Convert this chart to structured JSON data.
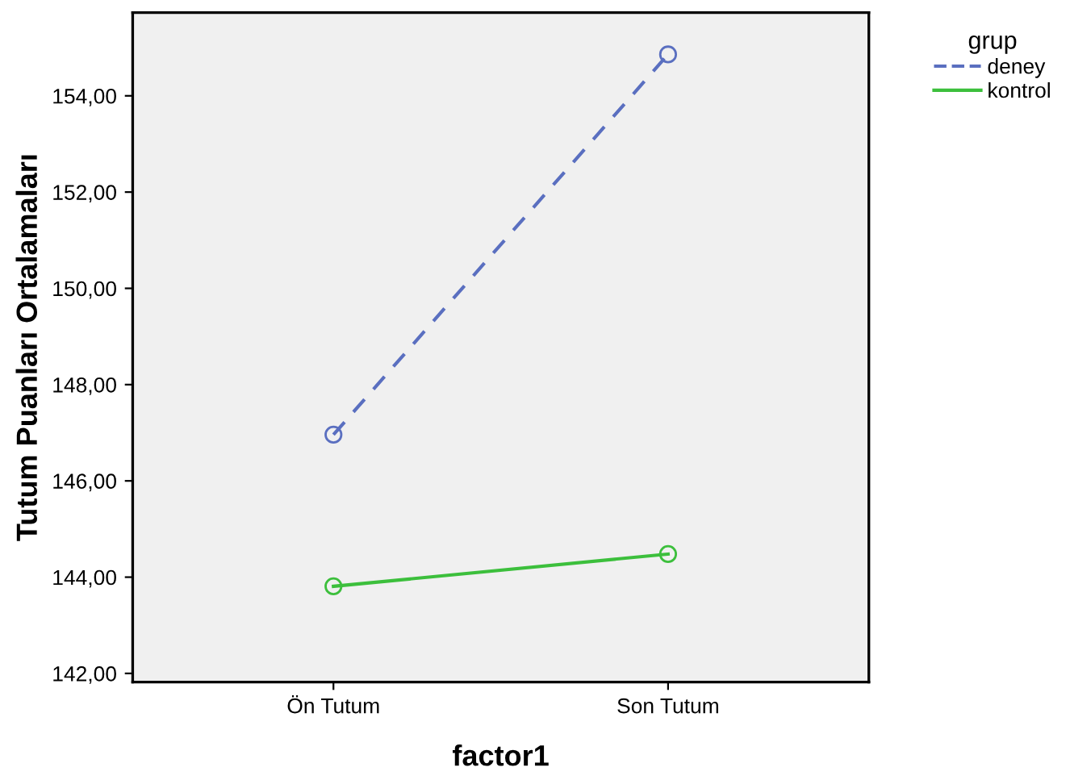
{
  "chart_data": {
    "type": "line",
    "xlabel": "factor1",
    "ylabel": "Tutum Puanları Ortalamaları",
    "legend_title": "grup",
    "categories": [
      "Ön Tutum",
      "Son Tutum"
    ],
    "series": [
      {
        "name": "deney",
        "color": "#5a6fc0",
        "values": [
          146.96,
          154.86
        ],
        "line_style": "dashed"
      },
      {
        "name": "kontrol",
        "color": "#3cbf3c",
        "values": [
          143.81,
          144.48
        ],
        "line_style": "solid"
      }
    ],
    "ylim": [
      141.82,
      155.73
    ],
    "yticks": [
      {
        "value": 142,
        "label": "142,00"
      },
      {
        "value": 144,
        "label": "144,00"
      },
      {
        "value": 146,
        "label": "146,00"
      },
      {
        "value": 148,
        "label": "148,00"
      },
      {
        "value": 150,
        "label": "150,00"
      },
      {
        "value": 152,
        "label": "152,00"
      },
      {
        "value": 154,
        "label": "154,00"
      }
    ],
    "marker": "circle",
    "grid": false,
    "legend": "top right"
  }
}
